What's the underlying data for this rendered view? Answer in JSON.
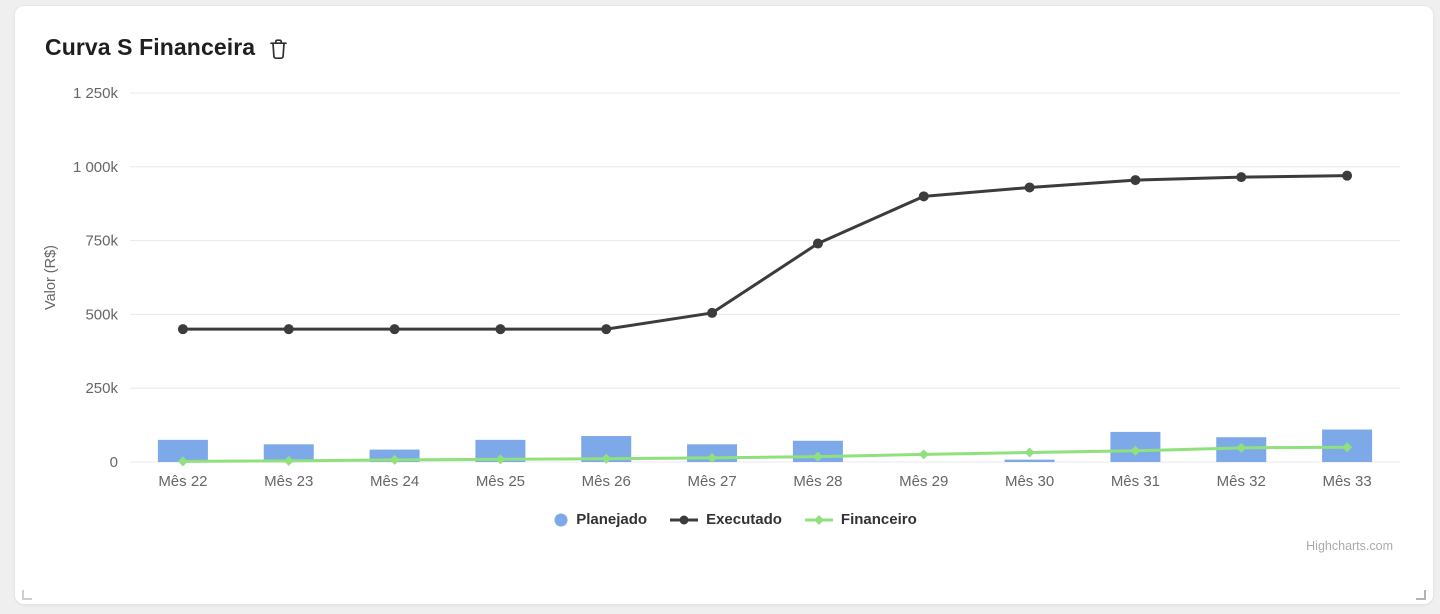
{
  "window": {
    "background_color": "#efeff0",
    "card_background": "#ffffff"
  },
  "chart_data": {
    "type": "combo",
    "title": "Curva S Financeira",
    "categories": [
      "Mês 22",
      "Mês 23",
      "Mês 24",
      "Mês 25",
      "Mês 26",
      "Mês 27",
      "Mês 28",
      "Mês 29",
      "Mês 30",
      "Mês 31",
      "Mês 32",
      "Mês 33"
    ],
    "series": [
      {
        "name": "Planejado",
        "type": "column",
        "marker": "circle",
        "color": "#7da9e8",
        "values_k": [
          75,
          60,
          42,
          75,
          88,
          60,
          72,
          0,
          8,
          102,
          84,
          110
        ]
      },
      {
        "name": "Executado",
        "type": "line",
        "marker": "circle",
        "color": "#3c3c3c",
        "values_k": [
          450,
          450,
          450,
          450,
          450,
          505,
          740,
          900,
          930,
          955,
          965,
          970
        ]
      },
      {
        "name": "Financeiro",
        "type": "line",
        "marker": "diamond",
        "color": "#90e17d",
        "values_k": [
          2,
          4,
          7,
          9,
          11,
          14,
          18,
          26,
          32,
          38,
          48,
          50
        ]
      }
    ],
    "unit": "k = thousands of R$",
    "xlabel": "",
    "ylabel": "Valor (R$)",
    "ylim_k": [
      0,
      1250
    ],
    "yticks_k": [
      0,
      250,
      500,
      750,
      1000,
      1250
    ],
    "ytick_labels": [
      "0",
      "250k",
      "500k",
      "750k",
      "1 000k",
      "1 250k"
    ],
    "grid": true,
    "legend_position": "bottom-center",
    "colors": {
      "grid_line": "#e7e7f0",
      "axis_label": "#666666",
      "axis_title": "#666666",
      "legend_text": "#333333",
      "title_text": "#1f1f1f"
    }
  },
  "credits": {
    "text": "Highcharts.com"
  }
}
